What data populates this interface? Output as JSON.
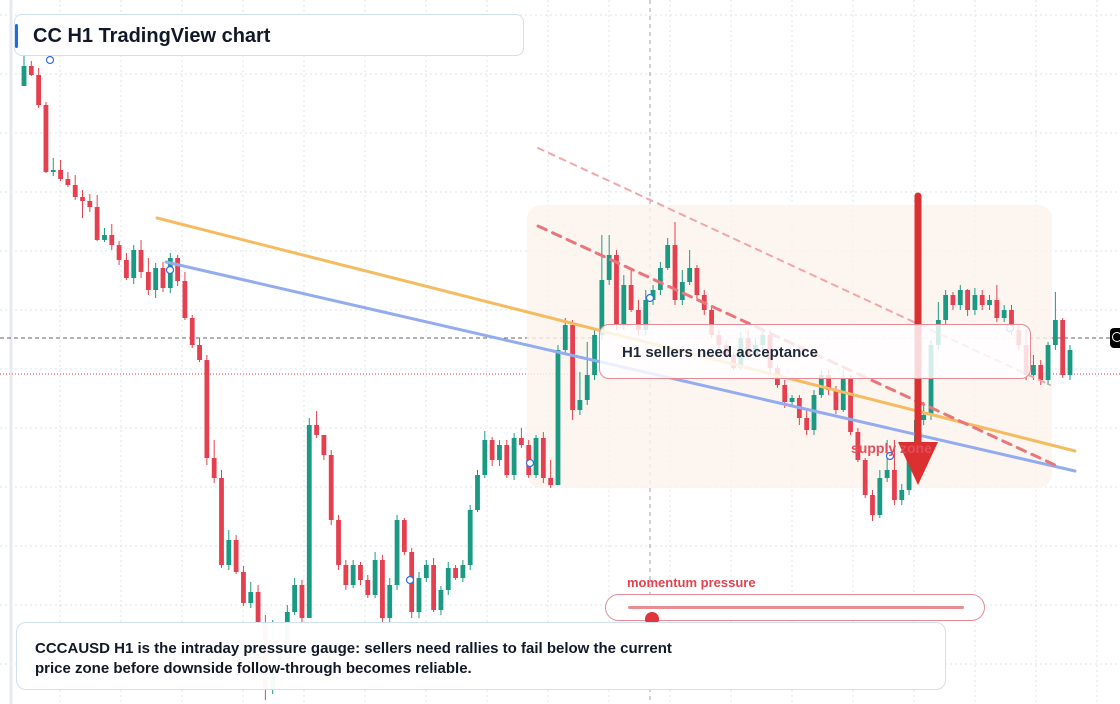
{
  "header": {
    "title": "CC H1 TradingView chart"
  },
  "annotations": {
    "callout": "H1 sellers need acceptance",
    "zone_label": "supply zone",
    "momentum_label": "momentum pressure"
  },
  "note": {
    "text": "CCCAUSD H1 is the intraday pressure gauge: sellers need rallies to fail below the current price zone before downside follow-through becomes reliable."
  },
  "momentum": {
    "level": 0.07
  },
  "colors": {
    "up": "#1a9a82",
    "down": "#e5404f",
    "orange_line": "#f5bb60",
    "blue_line": "#93abef",
    "red_dash": "#e8767b",
    "arrow": "#dc2f2f",
    "zone_fill": "#fdf3ec",
    "grid": "#dfe4ea"
  },
  "chart_data": {
    "type": "candlestick",
    "y_axis": "price, unlabeled",
    "candles": [
      [
        86,
        66,
        86,
        50
      ],
      [
        66,
        75,
        76,
        61
      ],
      [
        75,
        105,
        108,
        68
      ],
      [
        105,
        172,
        173,
        102
      ],
      [
        172,
        170,
        176,
        158
      ],
      [
        170,
        179,
        181,
        160
      ],
      [
        179,
        185,
        187,
        172
      ],
      [
        185,
        197,
        200,
        175
      ],
      [
        197,
        201,
        218,
        190
      ],
      [
        201,
        207,
        212,
        194
      ],
      [
        207,
        240,
        241,
        195
      ],
      [
        240,
        235,
        242,
        228
      ],
      [
        235,
        245,
        250,
        224
      ],
      [
        245,
        260,
        265,
        241
      ],
      [
        260,
        278,
        280,
        253
      ],
      [
        278,
        250,
        284,
        245
      ],
      [
        250,
        272,
        278,
        240
      ],
      [
        272,
        290,
        295,
        258
      ],
      [
        290,
        268,
        298,
        263
      ],
      [
        268,
        288,
        292,
        262
      ],
      [
        288,
        258,
        293,
        253
      ],
      [
        258,
        281,
        286,
        255
      ],
      [
        281,
        318,
        320,
        272
      ],
      [
        318,
        345,
        348,
        315
      ],
      [
        345,
        360,
        362,
        338
      ],
      [
        360,
        458,
        465,
        355
      ],
      [
        458,
        478,
        483,
        440
      ],
      [
        478,
        565,
        568,
        470
      ],
      [
        565,
        540,
        570,
        530
      ],
      [
        540,
        572,
        574,
        535
      ],
      [
        572,
        603,
        606,
        566
      ],
      [
        603,
        592,
        608,
        582
      ],
      [
        592,
        623,
        627,
        585
      ],
      [
        623,
        690,
        700,
        615
      ],
      [
        690,
        670,
        694,
        620
      ],
      [
        670,
        648,
        673,
        640
      ],
      [
        648,
        612,
        652,
        605
      ],
      [
        612,
        585,
        615,
        578
      ],
      [
        585,
        618,
        622,
        580
      ],
      [
        618,
        425,
        430,
        418
      ],
      [
        425,
        435,
        438,
        411
      ],
      [
        435,
        455,
        460,
        452
      ],
      [
        455,
        520,
        525,
        450
      ],
      [
        520,
        565,
        570,
        515
      ],
      [
        565,
        585,
        590,
        560
      ],
      [
        585,
        565,
        588,
        560
      ],
      [
        565,
        580,
        585,
        562
      ],
      [
        580,
        595,
        598,
        575
      ],
      [
        595,
        560,
        598,
        552
      ],
      [
        560,
        618,
        622,
        555
      ],
      [
        618,
        585,
        622,
        578
      ],
      [
        585,
        520,
        590,
        515
      ],
      [
        520,
        552,
        555,
        518
      ],
      [
        552,
        612,
        618,
        548
      ],
      [
        612,
        578,
        618,
        572
      ],
      [
        578,
        565,
        582,
        560
      ],
      [
        565,
        610,
        612,
        558
      ],
      [
        610,
        590,
        615,
        586
      ],
      [
        590,
        568,
        595,
        562
      ],
      [
        568,
        578,
        580,
        565
      ],
      [
        578,
        565,
        582,
        560
      ],
      [
        565,
        510,
        570,
        505
      ],
      [
        510,
        475,
        512,
        470
      ],
      [
        475,
        440,
        478,
        431
      ],
      [
        440,
        460,
        466,
        437
      ],
      [
        460,
        445,
        466,
        440
      ],
      [
        445,
        475,
        478,
        440
      ],
      [
        475,
        438,
        480,
        433
      ],
      [
        438,
        445,
        448,
        428
      ],
      [
        445,
        475,
        478,
        440
      ],
      [
        475,
        438,
        478,
        435
      ],
      [
        438,
        478,
        483,
        432
      ],
      [
        478,
        485,
        488,
        460
      ],
      [
        485,
        350,
        356,
        345
      ],
      [
        350,
        325,
        355,
        318
      ],
      [
        325,
        410,
        420,
        320
      ],
      [
        410,
        400,
        415,
        372
      ],
      [
        400,
        375,
        405,
        342
      ],
      [
        375,
        335,
        380,
        330
      ],
      [
        335,
        280,
        340,
        235
      ],
      [
        280,
        255,
        285,
        235
      ],
      [
        255,
        325,
        330,
        250
      ],
      [
        325,
        285,
        330,
        275
      ],
      [
        285,
        310,
        312,
        270
      ],
      [
        310,
        330,
        335,
        300
      ],
      [
        330,
        300,
        335,
        290
      ],
      [
        300,
        290,
        305,
        285
      ],
      [
        290,
        268,
        295,
        262
      ],
      [
        268,
        245,
        270,
        238
      ],
      [
        245,
        300,
        305,
        222
      ],
      [
        300,
        282,
        305,
        270
      ],
      [
        282,
        268,
        285,
        250
      ],
      [
        268,
        295,
        300,
        265
      ],
      [
        295,
        310,
        315,
        290
      ],
      [
        310,
        335,
        338,
        306
      ],
      [
        335,
        345,
        348,
        330
      ],
      [
        345,
        355,
        358,
        340
      ],
      [
        355,
        368,
        370,
        352
      ],
      [
        368,
        338,
        370,
        332
      ],
      [
        338,
        355,
        360,
        330
      ],
      [
        355,
        345,
        358,
        338
      ],
      [
        345,
        335,
        350,
        328
      ],
      [
        335,
        368,
        372,
        330
      ],
      [
        368,
        385,
        388,
        365
      ],
      [
        385,
        402,
        408,
        380
      ],
      [
        402,
        398,
        405,
        395
      ],
      [
        398,
        418,
        425,
        395
      ],
      [
        418,
        430,
        435,
        410
      ],
      [
        430,
        395,
        435,
        390
      ],
      [
        395,
        375,
        398,
        370
      ],
      [
        375,
        390,
        395,
        370
      ],
      [
        390,
        410,
        414,
        386
      ],
      [
        410,
        378,
        412,
        370
      ],
      [
        378,
        432,
        435,
        375
      ],
      [
        432,
        460,
        462,
        428
      ],
      [
        460,
        495,
        498,
        458
      ],
      [
        495,
        515,
        521,
        490
      ],
      [
        515,
        478,
        518,
        470
      ],
      [
        478,
        470,
        482,
        440
      ],
      [
        470,
        500,
        505,
        440
      ],
      [
        500,
        490,
        505,
        484
      ],
      [
        490,
        455,
        495,
        450
      ],
      [
        455,
        420,
        460,
        415
      ],
      [
        420,
        415,
        425,
        402
      ],
      [
        415,
        345,
        420,
        340
      ],
      [
        345,
        320,
        350,
        302
      ],
      [
        320,
        295,
        325,
        290
      ],
      [
        295,
        305,
        310,
        292
      ],
      [
        305,
        290,
        310,
        285
      ],
      [
        290,
        310,
        316,
        289
      ],
      [
        310,
        295,
        315,
        288
      ],
      [
        295,
        305,
        310,
        290
      ],
      [
        305,
        300,
        310,
        295
      ],
      [
        300,
        318,
        322,
        285
      ],
      [
        318,
        310,
        322,
        305
      ],
      [
        310,
        330,
        335,
        305
      ],
      [
        330,
        345,
        350,
        325
      ],
      [
        345,
        375,
        380,
        330
      ],
      [
        375,
        365,
        380,
        355
      ],
      [
        365,
        380,
        385,
        360
      ],
      [
        380,
        345,
        385,
        342
      ],
      [
        345,
        320,
        350,
        292
      ],
      [
        320,
        375,
        378,
        318
      ],
      [
        375,
        350,
        380,
        345
      ]
    ],
    "trend_lines": [
      {
        "color": "orange",
        "from": [
          157,
          218
        ],
        "to": [
          1075,
          451
        ]
      },
      {
        "color": "blue",
        "from": [
          166,
          262
        ],
        "to": [
          1075,
          471
        ]
      },
      {
        "color": "red-dashed",
        "from": [
          538,
          226
        ],
        "to": [
          1055,
          465
        ]
      },
      {
        "color": "red-dashed-light",
        "from": [
          538,
          148
        ],
        "to": [
          1050,
          385
        ]
      }
    ],
    "markers": [
      [
        50,
        60
      ],
      [
        170,
        270
      ],
      [
        410,
        580
      ],
      [
        530,
        463
      ],
      [
        650,
        298
      ],
      [
        890,
        456
      ],
      [
        1010,
        328
      ]
    ],
    "price_line_y": 338,
    "dotted_line_y": 374,
    "crosshair_x": 650
  }
}
